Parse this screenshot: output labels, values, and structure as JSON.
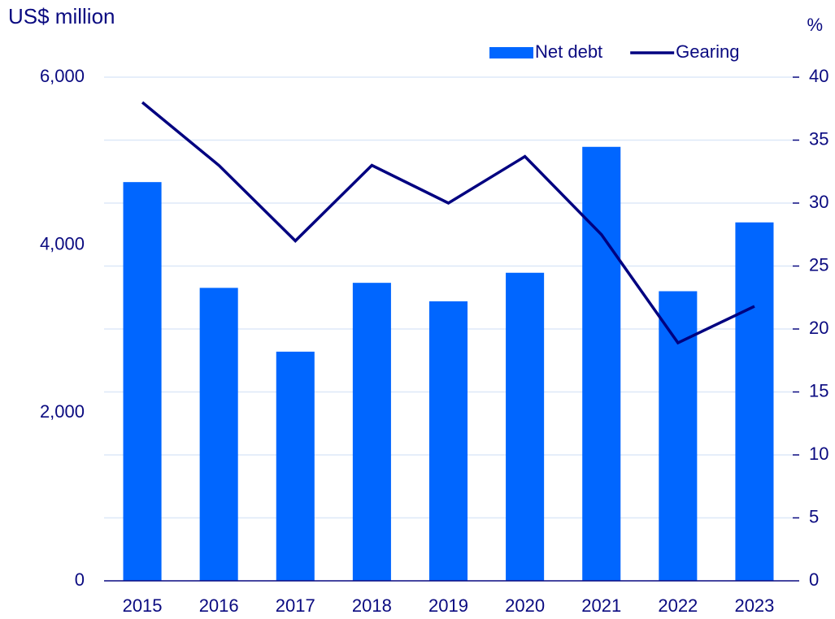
{
  "chart_data": {
    "type": "bar_line",
    "y_label": "US$ million",
    "y2_label": "%",
    "categories": [
      "2015",
      "2016",
      "2017",
      "2018",
      "2019",
      "2020",
      "2021",
      "2022",
      "2023"
    ],
    "series": [
      {
        "name": "Net debt",
        "type": "bar",
        "color": "#0066ff",
        "values": [
          4750,
          3490,
          2730,
          3550,
          3330,
          3670,
          5170,
          3450,
          4270
        ]
      },
      {
        "name": "Gearing",
        "type": "line",
        "axis": "y2",
        "color": "#000080",
        "values": [
          38,
          33,
          27,
          33,
          30,
          33.7,
          27.5,
          18.9,
          21.8
        ]
      }
    ],
    "ylim": [
      0,
      6000
    ],
    "yticks": [
      0,
      {
        "value": 2000,
        "label": "2,000"
      },
      {
        "value": 4000,
        "label": "4,000"
      },
      {
        "value": 6000,
        "label": "6,000"
      }
    ],
    "y2lim": [
      0,
      40
    ],
    "y2ticks": [
      0,
      5,
      10,
      15,
      20,
      25,
      30,
      35,
      40
    ],
    "grid": true,
    "legend": "top-right"
  }
}
